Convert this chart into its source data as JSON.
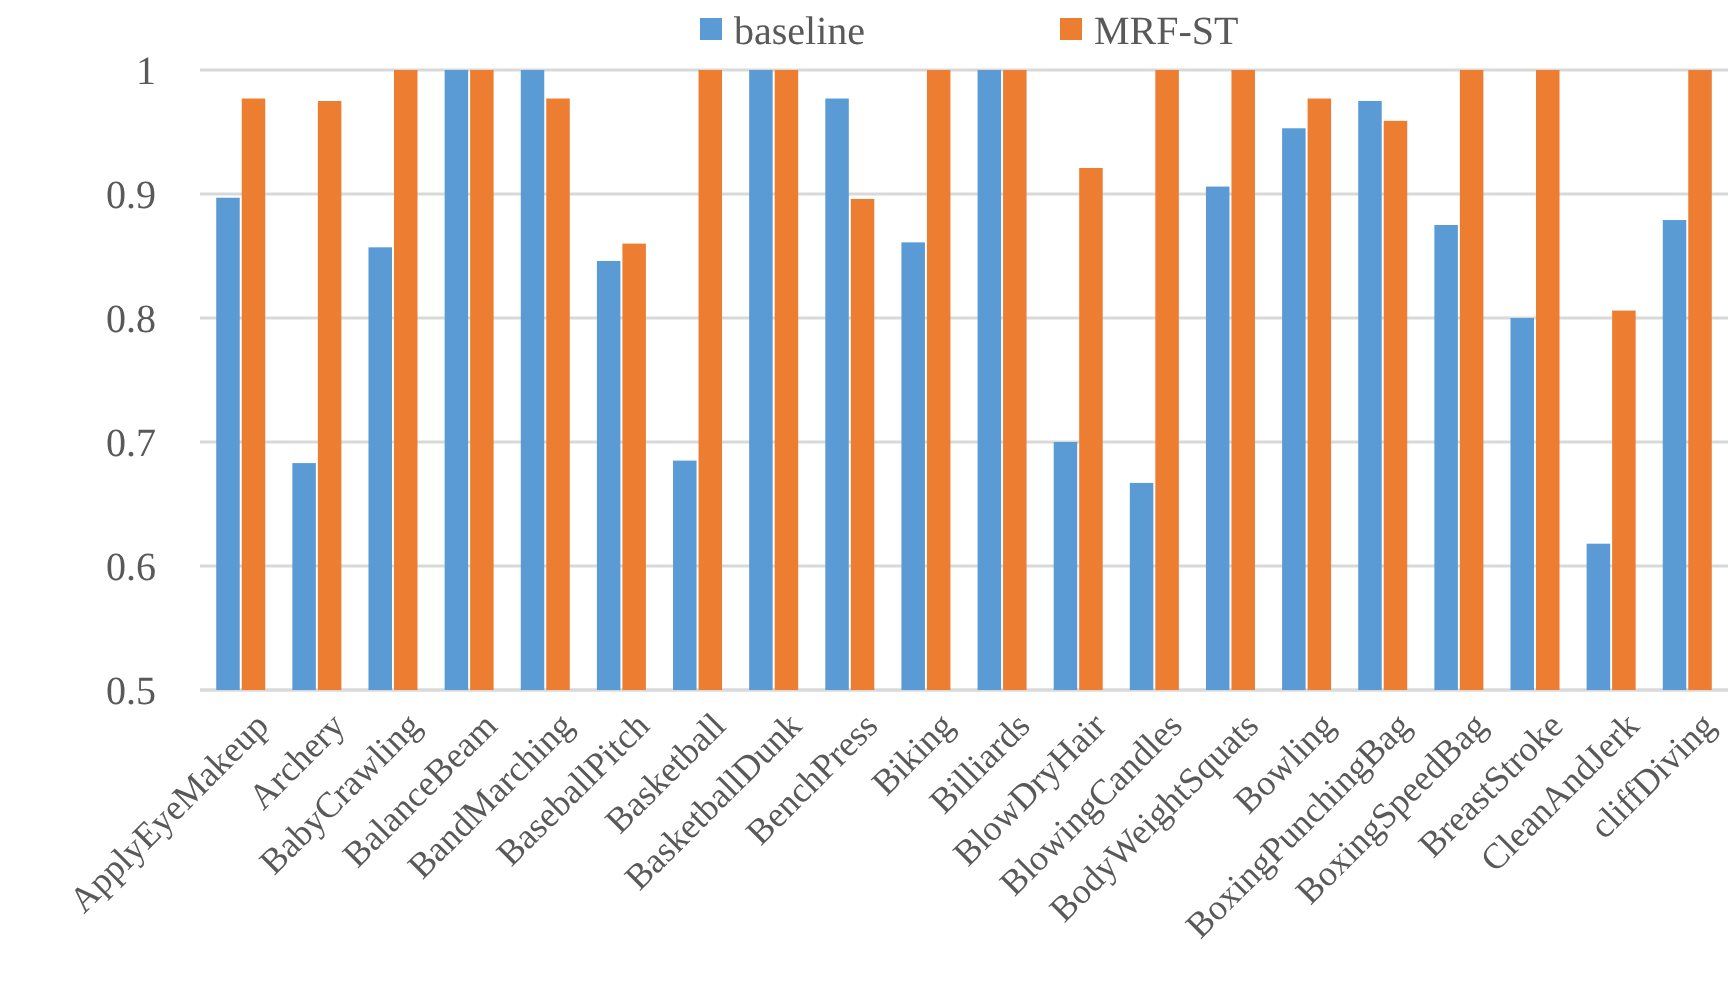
{
  "chart_data": {
    "type": "bar",
    "categories": [
      "ApplyEyeMakeup",
      "Archery",
      "BabyCrawling",
      "BalanceBeam",
      "BandMarching",
      "BaseballPitch",
      "Basketball",
      "BasketballDunk",
      "BenchPress",
      "Biking",
      "Billiards",
      "BlowDryHair",
      "BlowingCandles",
      "BodyWeightSquats",
      "Bowling",
      "BoxingPunchingBag",
      "BoxingSpeedBag",
      "BreastStroke",
      "CleanAndJerk",
      "cliffDiving"
    ],
    "series": [
      {
        "name": "baseline",
        "color": "#5b9bd5",
        "values": [
          0.897,
          0.683,
          0.857,
          1,
          1,
          0.846,
          0.685,
          1,
          0.977,
          0.861,
          1,
          0.7,
          0.667,
          0.906,
          0.953,
          0.975,
          0.875,
          0.8,
          0.618,
          0.879
        ]
      },
      {
        "name": "MRF-ST",
        "color": "#ed7d31",
        "values": [
          0.977,
          0.975,
          1,
          1,
          0.977,
          0.86,
          1,
          1,
          0.896,
          1,
          1,
          0.921,
          1,
          1,
          0.977,
          0.959,
          1,
          1,
          0.806,
          1
        ]
      }
    ],
    "ylim": [
      0.5,
      1
    ],
    "yticks": [
      0.5,
      0.6,
      0.7,
      0.8,
      0.9,
      1
    ],
    "grid": "y",
    "legend": "top"
  }
}
